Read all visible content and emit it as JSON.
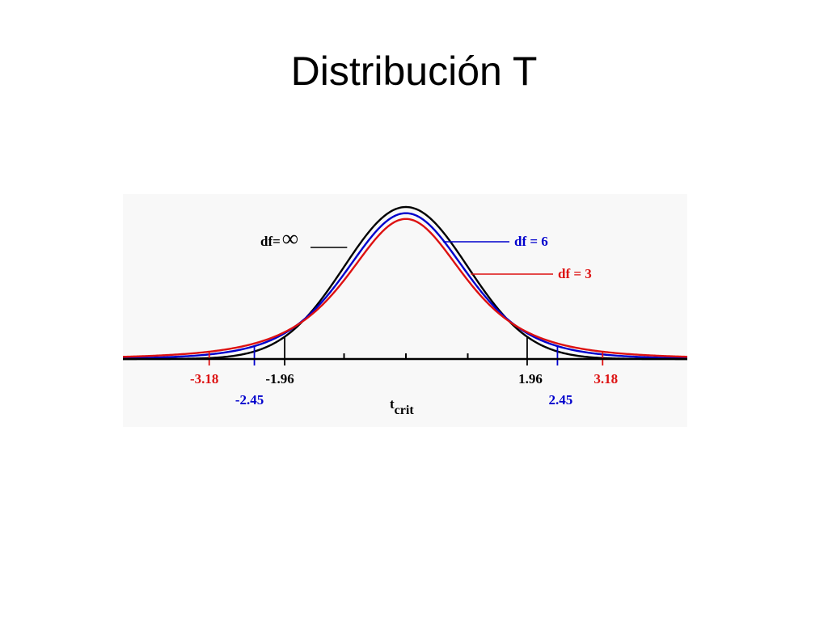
{
  "slide": {
    "title": "Distribución T"
  },
  "chart_data": {
    "type": "line",
    "title": "",
    "xlabel": "t",
    "xlabel_sub": "crit",
    "ylabel": "",
    "xlim": [
      -4.6,
      4.6
    ],
    "grid": false,
    "series": [
      {
        "name": "df= ∞",
        "label_prefix": "df=",
        "label_symbol": "∞",
        "df": "infinity",
        "color": "#000000",
        "critical_values": [
          "-1.96",
          "1.96"
        ]
      },
      {
        "name": "df = 6",
        "df": 6,
        "color": "#0000cc",
        "critical_values": [
          "-2.45",
          "2.45"
        ]
      },
      {
        "name": "df = 3",
        "df": 3,
        "color": "#dd1111",
        "critical_values": [
          "-3.18",
          "3.18"
        ]
      }
    ],
    "unlabeled_ticks": [
      -1,
      0,
      1
    ]
  }
}
